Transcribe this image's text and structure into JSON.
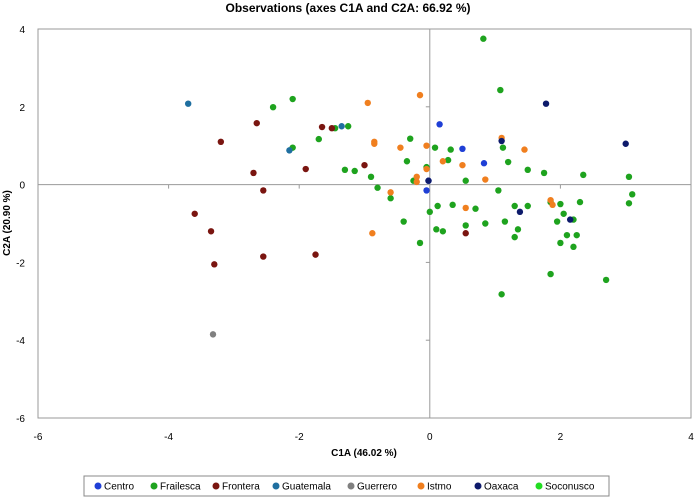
{
  "chart_data": {
    "type": "scatter",
    "title": "Observations (axes C1A and C2A: 66.92 %)",
    "xlabel": "C1A (46.02 %)",
    "ylabel": "C2A (20.90 %)",
    "xlim": [
      -6,
      4
    ],
    "ylim": [
      -6,
      4
    ],
    "xticks": [
      -6,
      -4,
      -2,
      0,
      2,
      4
    ],
    "yticks": [
      -6,
      -4,
      -2,
      0,
      2,
      4
    ],
    "grid": false,
    "legend_position": "bottom",
    "series": [
      {
        "name": "Centro",
        "color": "#1f3fd6",
        "points": [
          [
            0.15,
            1.55
          ],
          [
            0.5,
            0.92
          ],
          [
            0.83,
            0.55
          ],
          [
            -0.05,
            -0.15
          ],
          [
            -0.02,
            0.1
          ]
        ]
      },
      {
        "name": "Frailesca",
        "color": "#1ea31e",
        "points": [
          [
            0.82,
            3.75
          ],
          [
            1.08,
            2.43
          ],
          [
            -2.1,
            2.2
          ],
          [
            -2.4,
            1.99
          ],
          [
            -1.25,
            1.5
          ],
          [
            -1.45,
            1.45
          ],
          [
            -2.1,
            0.95
          ],
          [
            -1.7,
            1.17
          ],
          [
            -0.3,
            1.18
          ],
          [
            0.08,
            0.95
          ],
          [
            0.32,
            0.9
          ],
          [
            1.12,
            0.95
          ],
          [
            1.2,
            0.58
          ],
          [
            0.28,
            0.63
          ],
          [
            -0.35,
            0.6
          ],
          [
            -0.05,
            0.45
          ],
          [
            1.5,
            0.38
          ],
          [
            1.75,
            0.3
          ],
          [
            2.35,
            0.25
          ],
          [
            -1.3,
            0.38
          ],
          [
            -1.15,
            0.35
          ],
          [
            -0.9,
            0.2
          ],
          [
            -0.25,
            0.1
          ],
          [
            0.55,
            0.1
          ],
          [
            1.05,
            -0.15
          ],
          [
            -0.8,
            -0.08
          ],
          [
            -0.6,
            -0.35
          ],
          [
            0.35,
            -0.52
          ],
          [
            0.12,
            -0.55
          ],
          [
            0.0,
            -0.7
          ],
          [
            0.7,
            -0.62
          ],
          [
            1.3,
            -0.55
          ],
          [
            1.5,
            -0.55
          ],
          [
            1.85,
            -0.45
          ],
          [
            2.0,
            -0.5
          ],
          [
            2.3,
            -0.45
          ],
          [
            3.05,
            0.2
          ],
          [
            3.1,
            -0.25
          ],
          [
            3.05,
            -0.48
          ],
          [
            2.05,
            -0.75
          ],
          [
            1.95,
            -0.95
          ],
          [
            2.2,
            -0.9
          ],
          [
            1.15,
            -0.95
          ],
          [
            0.85,
            -1.0
          ],
          [
            0.55,
            -1.05
          ],
          [
            0.1,
            -1.15
          ],
          [
            0.2,
            -1.2
          ],
          [
            -0.4,
            -0.95
          ],
          [
            -0.15,
            -1.5
          ],
          [
            1.35,
            -1.15
          ],
          [
            1.3,
            -1.35
          ],
          [
            2.1,
            -1.3
          ],
          [
            2.25,
            -1.3
          ],
          [
            2.2,
            -1.6
          ],
          [
            2.0,
            -1.5
          ],
          [
            1.85,
            -2.3
          ],
          [
            2.7,
            -2.45
          ],
          [
            1.1,
            -2.82
          ]
        ]
      },
      {
        "name": "Frontera",
        "color": "#7a1510",
        "points": [
          [
            -2.65,
            1.58
          ],
          [
            -3.2,
            1.1
          ],
          [
            -1.65,
            1.48
          ],
          [
            -1.5,
            1.45
          ],
          [
            -2.7,
            0.3
          ],
          [
            -2.55,
            -0.15
          ],
          [
            -1.9,
            0.4
          ],
          [
            -1.0,
            0.5
          ],
          [
            -3.6,
            -0.75
          ],
          [
            -3.35,
            -1.2
          ],
          [
            -3.3,
            -2.05
          ],
          [
            -2.55,
            -1.85
          ],
          [
            -1.75,
            -1.8
          ],
          [
            0.55,
            -1.25
          ]
        ]
      },
      {
        "name": "Guatemala",
        "color": "#1f6fa0",
        "points": [
          [
            -3.7,
            2.08
          ],
          [
            -1.35,
            1.5
          ],
          [
            -2.15,
            0.88
          ]
        ]
      },
      {
        "name": "Guerrero",
        "color": "#808080",
        "points": [
          [
            -3.32,
            -3.85
          ]
        ]
      },
      {
        "name": "Istmo",
        "color": "#f07f1f",
        "points": [
          [
            -0.95,
            2.1
          ],
          [
            -0.15,
            2.3
          ],
          [
            1.1,
            1.2
          ],
          [
            1.45,
            0.9
          ],
          [
            -0.85,
            1.1
          ],
          [
            -0.85,
            1.05
          ],
          [
            -0.45,
            0.95
          ],
          [
            -0.05,
            1.0
          ],
          [
            0.2,
            0.6
          ],
          [
            0.5,
            0.5
          ],
          [
            -0.05,
            0.4
          ],
          [
            -0.2,
            0.2
          ],
          [
            -0.2,
            0.07
          ],
          [
            0.85,
            0.13
          ],
          [
            -0.6,
            -0.2
          ],
          [
            1.85,
            -0.4
          ],
          [
            1.88,
            -0.52
          ],
          [
            -0.88,
            -1.25
          ],
          [
            0.55,
            -0.6
          ]
        ]
      },
      {
        "name": "Oaxaca",
        "color": "#0d1a6b",
        "points": [
          [
            1.78,
            2.08
          ],
          [
            3.0,
            1.05
          ],
          [
            1.1,
            1.12
          ],
          [
            -0.02,
            0.1
          ],
          [
            1.38,
            -0.7
          ],
          [
            2.15,
            -0.9
          ]
        ]
      },
      {
        "name": "Soconusco",
        "color": "#22dd22",
        "points": []
      }
    ]
  }
}
